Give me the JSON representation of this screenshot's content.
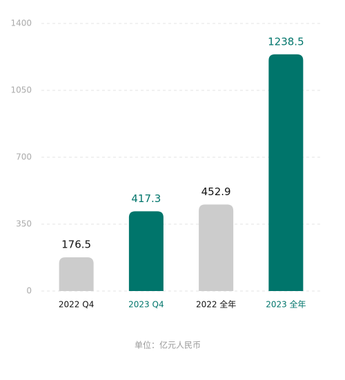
{
  "chart_data": {
    "type": "bar",
    "categories": [
      "2022 Q4",
      "2023 Q4",
      "2022 全年",
      "2023 全年"
    ],
    "values": [
      176.5,
      417.3,
      452.9,
      1238.5
    ],
    "colors": [
      "#cccccc",
      "#00756b",
      "#cccccc",
      "#00756b"
    ],
    "label_colors": [
      "#111111",
      "#00756b",
      "#111111",
      "#00756b"
    ],
    "ylim": [
      0,
      1400
    ],
    "yticks": [
      0,
      350,
      700,
      1050,
      1400
    ],
    "grid": true,
    "note": "单位：亿元人民币"
  }
}
